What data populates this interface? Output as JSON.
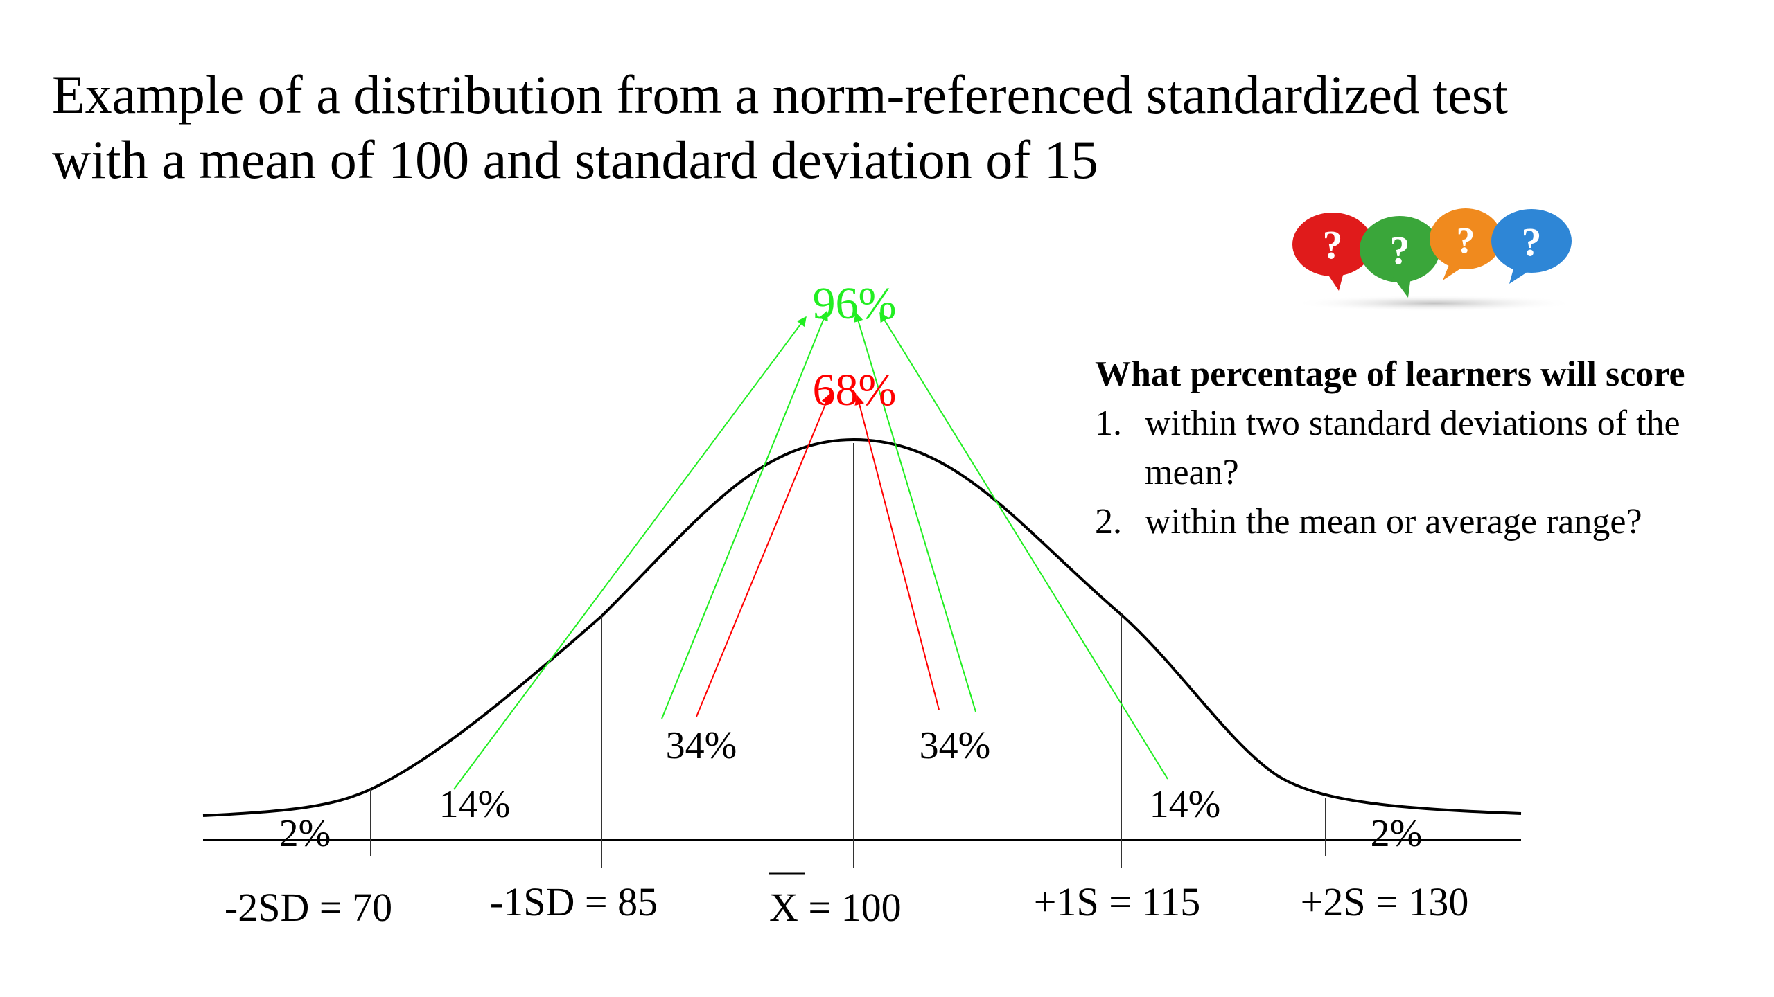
{
  "slide": {
    "title_line1": "Example of a distribution from a norm-referenced standardized test",
    "title_line2": "with a mean of 100 and standard deviation of 15"
  },
  "question": {
    "heading": "What percentage of learners will score",
    "items": [
      {
        "num": "1.",
        "text": "within two standard deviations of the mean?"
      },
      {
        "num": "2.",
        "text": "within the mean or average range?"
      }
    ]
  },
  "icons": [
    "question-bubble-red-icon",
    "question-bubble-green-icon",
    "question-bubble-orange-icon",
    "question-bubble-blue-icon"
  ],
  "diagram": {
    "summary_labels": {
      "within_2sd": "96%",
      "within_1sd": "68%"
    },
    "region_labels": {
      "tail_left": "2%",
      "band_left_outer": "14%",
      "band_left_inner": "34%",
      "band_right_inner": "34%",
      "band_right_outer": "14%",
      "tail_right": "2%"
    },
    "axis_labels": {
      "minus_2sd": "-2SD = 70",
      "minus_1sd": "-1SD = 85",
      "mean_symbol": "X",
      "mean_value": " = 100",
      "plus_1s": "+1S = 115",
      "plus_2s": "+2S = 130"
    },
    "colors": {
      "within_2sd": "#22ee22",
      "within_1sd": "#ff0000",
      "curve": "#000000"
    }
  }
}
